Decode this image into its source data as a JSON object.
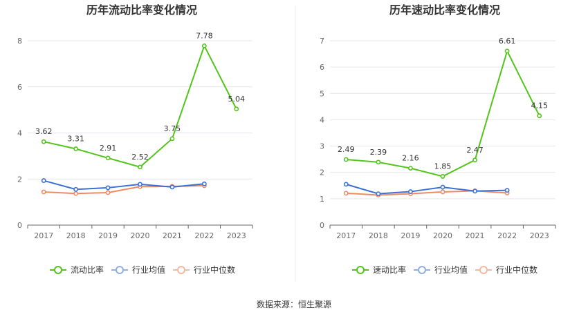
{
  "chart_data": [
    {
      "type": "line",
      "title": "历年流动比率变化情况",
      "categories": [
        "2017",
        "2018",
        "2019",
        "2020",
        "2021",
        "2022",
        "2023"
      ],
      "ylim": [
        0,
        8
      ],
      "yticks": [
        "0",
        "2",
        "4",
        "6",
        "8"
      ],
      "grid": true,
      "legend_position": "bottom",
      "series": [
        {
          "name": "流动比率",
          "color": "#52c41a",
          "values": [
            3.62,
            3.31,
            2.91,
            2.52,
            3.75,
            7.78,
            5.04
          ],
          "labels": [
            "3.62",
            "3.31",
            "2.91",
            "2.52",
            "3.75",
            "7.78",
            "5.04"
          ]
        },
        {
          "name": "行业均值",
          "color": "#3b6fd4",
          "values": [
            1.93,
            1.55,
            1.62,
            1.77,
            1.65,
            1.79,
            null
          ]
        },
        {
          "name": "行业中位数",
          "color": "#ef8a62",
          "values": [
            1.44,
            1.37,
            1.41,
            1.67,
            1.68,
            1.71,
            null
          ]
        }
      ]
    },
    {
      "type": "line",
      "title": "历年速动比率变化情况",
      "categories": [
        "2017",
        "2018",
        "2019",
        "2020",
        "2021",
        "2022",
        "2023"
      ],
      "ylim": [
        0,
        7
      ],
      "yticks": [
        "0",
        "1",
        "2",
        "3",
        "4",
        "5",
        "6",
        "7"
      ],
      "grid": true,
      "legend_position": "bottom",
      "series": [
        {
          "name": "速动比率",
          "color": "#52c41a",
          "values": [
            2.49,
            2.39,
            2.16,
            1.85,
            2.47,
            6.61,
            4.15
          ],
          "labels": [
            "2.49",
            "2.39",
            "2.16",
            "1.85",
            "2.47",
            "6.61",
            "4.15"
          ]
        },
        {
          "name": "行业均值",
          "color": "#3b6fd4",
          "values": [
            1.55,
            1.19,
            1.27,
            1.44,
            1.29,
            1.32,
            null
          ]
        },
        {
          "name": "行业中位数",
          "color": "#ef8a62",
          "values": [
            1.21,
            1.14,
            1.19,
            1.26,
            1.3,
            1.22,
            null
          ]
        }
      ]
    }
  ],
  "footer": {
    "source": "数据来源：恒生聚源"
  }
}
